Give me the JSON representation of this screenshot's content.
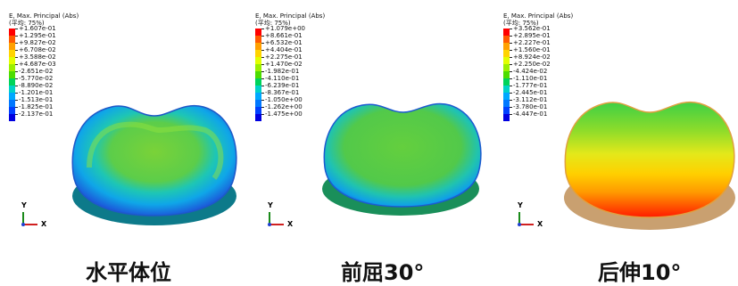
{
  "panels": [
    {
      "caption": "水平体位",
      "legend_title": "E, Max. Principal (Abs)",
      "legend_subtitle": "(平均: 75%)",
      "legend_values": [
        "+1.607e-01",
        "+1.295e-01",
        "+9.827e-02",
        "+6.708e-02",
        "+3.588e-02",
        "+4.687e-03",
        "-2.651e-02",
        "-5.770e-02",
        "-8.890e-02",
        "-1.201e-01",
        "-1.513e-01",
        "-1.825e-01",
        "-2.137e-01"
      ],
      "axis_y": "Y",
      "axis_x": "X"
    },
    {
      "caption": "前屈30°",
      "legend_title": "E, Max. Principal (Abs)",
      "legend_subtitle": "(平均: 75%)",
      "legend_values": [
        "+1.079e+00",
        "+8.661e-01",
        "+6.532e-01",
        "+4.404e-01",
        "+2.275e-01",
        "+1.470e-02",
        "-1.982e-01",
        "-4.110e-01",
        "-6.239e-01",
        "-8.367e-01",
        "-1.050e+00",
        "-1.262e+00",
        "-1.475e+00"
      ],
      "axis_y": "Y",
      "axis_x": "X"
    },
    {
      "caption": "后伸10°",
      "legend_title": "E, Max. Principal (Abs)",
      "legend_subtitle": "(平均: 75%)",
      "legend_values": [
        "+3.562e-01",
        "+2.895e-01",
        "+2.227e-01",
        "+1.560e-01",
        "+8.924e-02",
        "+2.250e-02",
        "-4.424e-02",
        "-1.110e-01",
        "-1.777e-01",
        "-2.445e-01",
        "-3.112e-01",
        "-3.780e-01",
        "-4.447e-01"
      ],
      "axis_y": "Y",
      "axis_x": "X"
    }
  ],
  "contour_colors": [
    "#ff0000",
    "#ff5a00",
    "#ffa000",
    "#ffd400",
    "#e2ff00",
    "#9cf000",
    "#4ddc00",
    "#00d35a",
    "#00d2c8",
    "#00a8ff",
    "#0078ff",
    "#0040ff",
    "#0000e0"
  ]
}
